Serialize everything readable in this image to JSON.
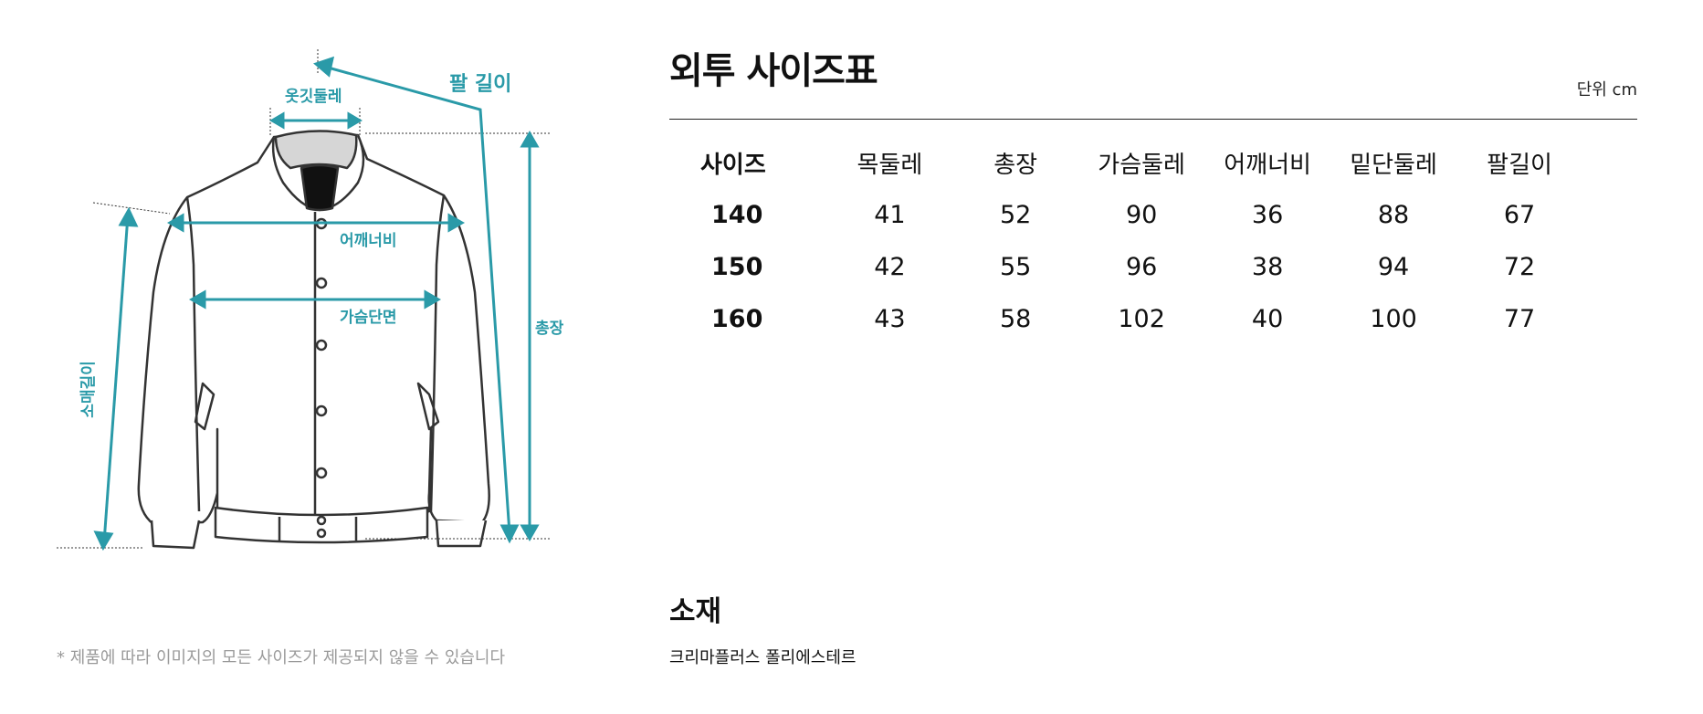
{
  "diagram": {
    "labels": {
      "arm_length": "팔 길이",
      "collar": "옷깃둘레",
      "shoulder": "어깨너비",
      "chest": "가슴단면",
      "total": "총장",
      "sleeve": "소매길이"
    },
    "accent_color": "#2a9aa8",
    "note": "* 제품에 따라 이미지의 모든 사이즈가 제공되지 않을 수 있습니다"
  },
  "size_chart": {
    "title": "외투 사이즈표",
    "unit": "단위 cm",
    "headers": [
      "사이즈",
      "목둘레",
      "총장",
      "가슴둘레",
      "어깨너비",
      "밑단둘레",
      "팔길이"
    ],
    "rows": [
      [
        "140",
        "41",
        "52",
        "90",
        "36",
        "88",
        "67"
      ],
      [
        "150",
        "42",
        "55",
        "96",
        "38",
        "94",
        "72"
      ],
      [
        "160",
        "43",
        "58",
        "102",
        "40",
        "100",
        "77"
      ]
    ]
  },
  "material": {
    "title": "소재",
    "value": "크리마플러스 폴리에스테르"
  }
}
